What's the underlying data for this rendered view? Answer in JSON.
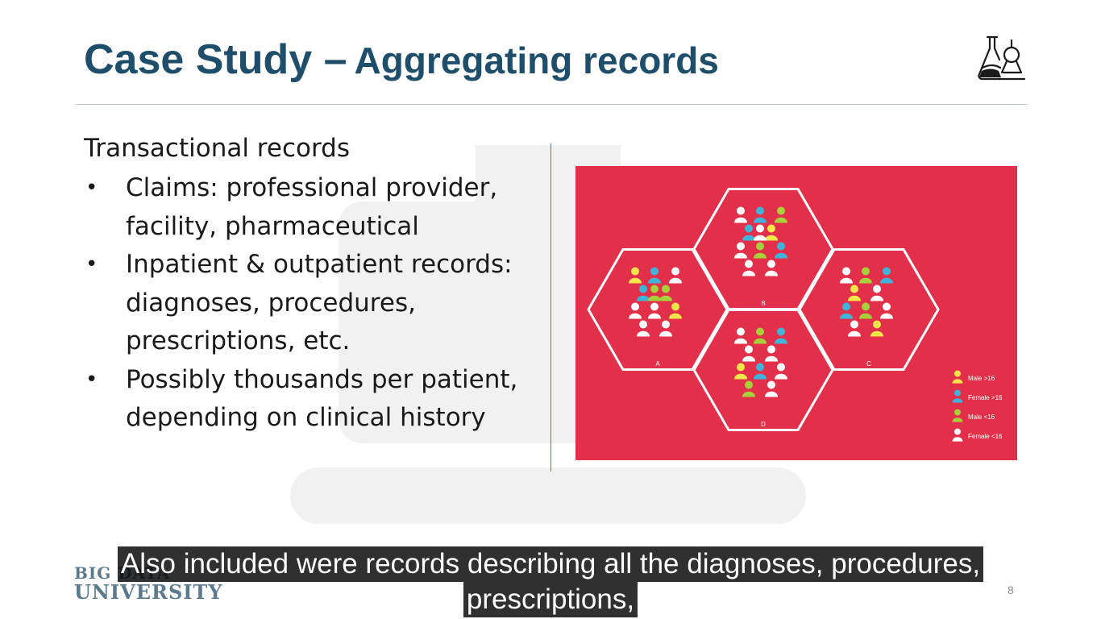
{
  "slide": {
    "title_main": "Case Study –",
    "title_sub": "Aggregating records",
    "section_heading": "Transactional records",
    "bullets": [
      "Claims: professional provider, facility, pharmaceutical",
      "Inpatient & outpatient records: diagnoses, procedures, prescriptions, etc.",
      "Possibly thousands per patient, depending on clinical history"
    ],
    "page_number": "8",
    "footer_logo": {
      "line1": "BIG DATA",
      "line2": "UNIVERSITY"
    },
    "logo_icon": "microscope-flask-icon"
  },
  "figure": {
    "background_color": "#e3304a",
    "groups": [
      {
        "label": "A",
        "people": [
          "yellow",
          "blue",
          "white",
          "blue",
          "green",
          "white",
          "white",
          "yellow",
          "white",
          "white",
          "green"
        ]
      },
      {
        "label": "B",
        "people": [
          "white",
          "blue",
          "green",
          "blue",
          "yellow",
          "white",
          "green",
          "blue",
          "white",
          "white",
          "white"
        ]
      },
      {
        "label": "C",
        "people": [
          "white",
          "green",
          "blue",
          "yellow",
          "white",
          "blue",
          "green",
          "white",
          "white",
          "yellow"
        ]
      },
      {
        "label": "D",
        "people": [
          "white",
          "green",
          "blue",
          "white",
          "white",
          "yellow",
          "blue",
          "white",
          "green",
          "white"
        ]
      }
    ],
    "legend": [
      {
        "label": "Male >16",
        "color": "#f2e54a"
      },
      {
        "label": "Female >16",
        "color": "#3fb4d8"
      },
      {
        "label": "Male <16",
        "color": "#a8d03a"
      },
      {
        "label": "Female <16",
        "color": "#ffffff"
      }
    ],
    "palette": {
      "yellow": "#f2e54a",
      "blue": "#3fb4d8",
      "green": "#a8d03a",
      "white": "#ffffff"
    }
  },
  "caption": {
    "line1": "Also included were records describing all the diagnoses, procedures,",
    "line2": "prescriptions,"
  }
}
